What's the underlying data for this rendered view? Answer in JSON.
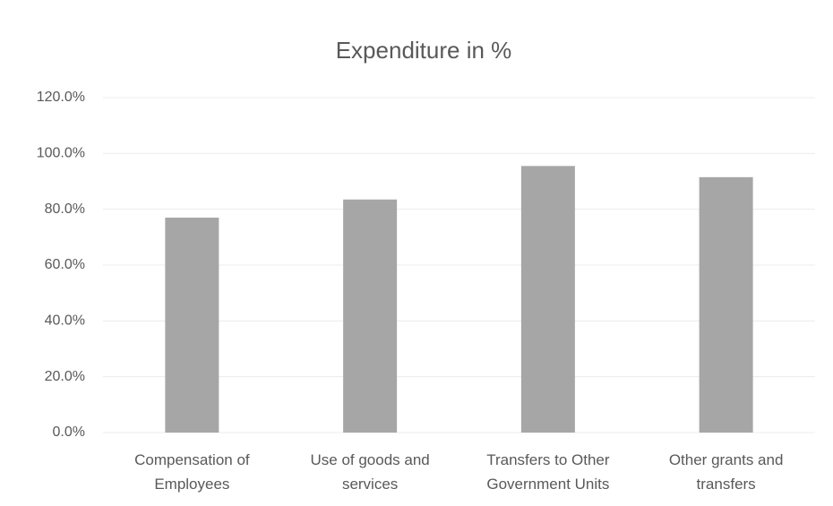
{
  "chart_data": {
    "type": "bar",
    "title": "Expenditure in %",
    "categories": [
      "Compensation of Employees",
      "Use of goods and services",
      "Transfers to Other Government Units",
      "Other grants and transfers"
    ],
    "values": [
      77,
      83.5,
      95.5,
      91.5
    ],
    "color": "#a6a6a6",
    "ylim": [
      0,
      120
    ],
    "yticks": [
      {
        "value": 0,
        "label": "0.0%"
      },
      {
        "value": 20,
        "label": "20.0%"
      },
      {
        "value": 40,
        "label": "40.0%"
      },
      {
        "value": 60,
        "label": "60.0%"
      },
      {
        "value": 80,
        "label": "80.0%"
      },
      {
        "value": 100,
        "label": "100.0%"
      },
      {
        "value": 120,
        "label": "120.0%"
      }
    ],
    "grid": true
  }
}
